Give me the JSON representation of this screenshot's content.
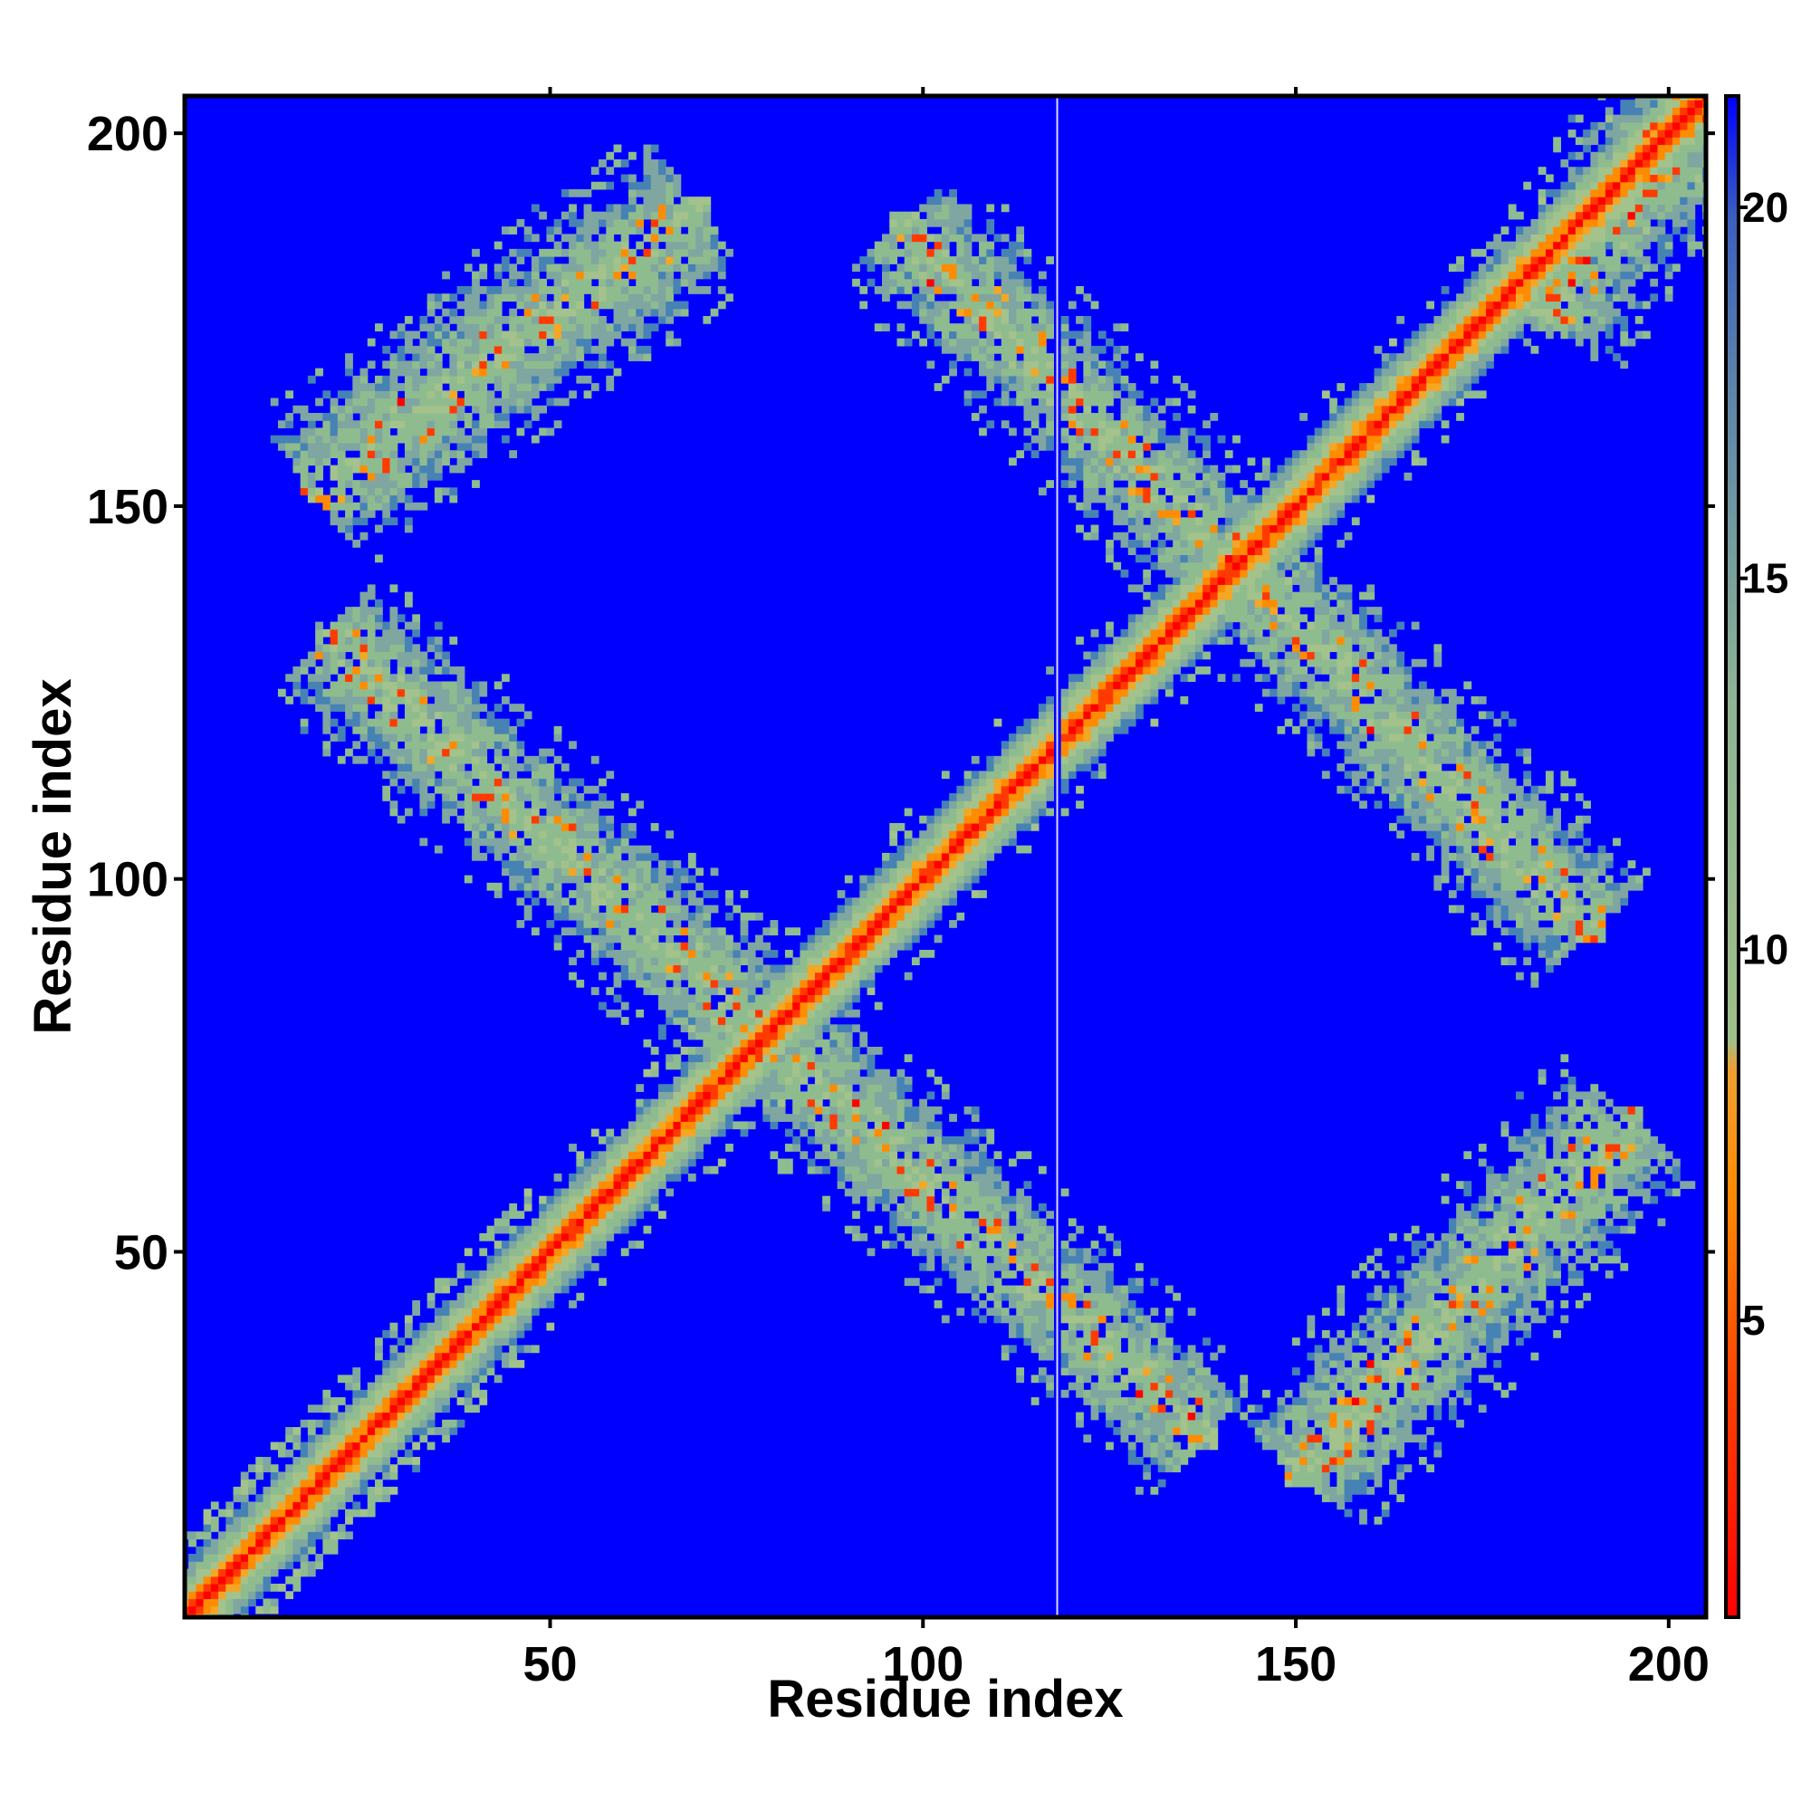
{
  "chart_data": {
    "type": "heatmap",
    "title": "",
    "xlabel": "Residue index",
    "ylabel": "Residue index",
    "xlim": [
      1,
      205
    ],
    "ylim": [
      1,
      205
    ],
    "x_ticks": [
      50,
      100,
      150,
      200
    ],
    "y_ticks": [
      50,
      100,
      150,
      200
    ],
    "colorbar": {
      "range": [
        1,
        21.5
      ],
      "ticks": [
        5,
        10,
        15,
        20
      ],
      "colors": [
        "#ff0000",
        "#ff8c00",
        "#8fbc8f",
        "#4682b4",
        "#0000ff"
      ]
    },
    "grid": false,
    "background_color": "#0000ff",
    "features": [
      {
        "name": "diagonal",
        "from": [
          1,
          1
        ],
        "to": [
          205,
          205
        ]
      },
      {
        "name": "antiparallel-band-upper-right",
        "from": [
          97,
          188
        ],
        "to": [
          190,
          93
        ]
      },
      {
        "name": "antiparallel-band-lower-left",
        "from": [
          20,
          133
        ],
        "to": [
          138,
          25
        ]
      },
      {
        "name": "parallel-band-top-left",
        "from": [
          18,
          152
        ],
        "to": [
          70,
          190
        ]
      },
      {
        "name": "parallel-band-bottom-right",
        "from": [
          150,
          20
        ],
        "to": [
          195,
          68
        ]
      },
      {
        "name": "parallel-band-top-corner",
        "from": [
          183,
          175
        ],
        "to": [
          205,
          205
        ]
      }
    ],
    "gap_column": 118
  }
}
